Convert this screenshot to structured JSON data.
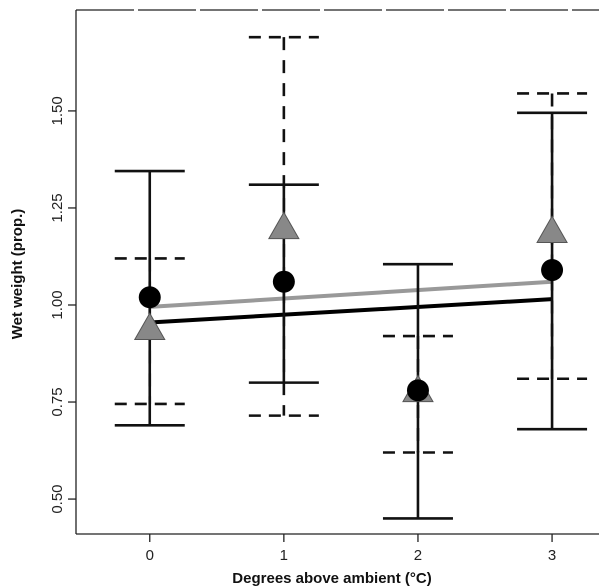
{
  "chart_data": {
    "type": "scatter",
    "title": "",
    "xlabel": "Degrees above ambient (°C)",
    "ylabel": "Wet weight (prop.)",
    "x_ticks": [
      0,
      1,
      2,
      3
    ],
    "x_tick_labels": [
      "0",
      "1",
      "2",
      "3"
    ],
    "y_ticks": [
      0.5,
      0.75,
      1.0,
      1.25,
      1.5
    ],
    "y_tick_labels": [
      "0.50",
      "0.75",
      "1.00",
      "1.25",
      "1.50"
    ],
    "xlim": [
      -0.55,
      3.35
    ],
    "ylim": [
      0.41,
      1.76
    ],
    "grid": false,
    "legend": "none",
    "series": [
      {
        "marker": "circle",
        "color": "#000000",
        "points": [
          {
            "x": 0,
            "y": 1.02
          },
          {
            "x": 1,
            "y": 1.06
          },
          {
            "x": 2,
            "y": 0.78
          },
          {
            "x": 3,
            "y": 1.09
          }
        ],
        "error_bars": {
          "style": "solid",
          "lower": [
            0.69,
            0.8,
            0.45,
            0.68
          ],
          "upper": [
            1.345,
            1.31,
            1.105,
            1.495
          ]
        },
        "fit_line": {
          "x": [
            0,
            3
          ],
          "y": [
            0.955,
            1.015
          ],
          "color": "#000000"
        }
      },
      {
        "marker": "triangle",
        "color": "#888888",
        "points": [
          {
            "x": 0,
            "y": 0.94
          },
          {
            "x": 1,
            "y": 1.2
          },
          {
            "x": 2,
            "y": 0.78
          },
          {
            "x": 3,
            "y": 1.19
          }
        ],
        "error_bars": {
          "style": "dashed",
          "lower": [
            0.745,
            0.715,
            0.62,
            0.81
          ],
          "upper": [
            1.12,
            1.69,
            0.92,
            1.545
          ]
        },
        "fit_line": {
          "x": [
            0,
            3
          ],
          "y": [
            0.995,
            1.06
          ],
          "color": "#999999"
        }
      }
    ]
  }
}
